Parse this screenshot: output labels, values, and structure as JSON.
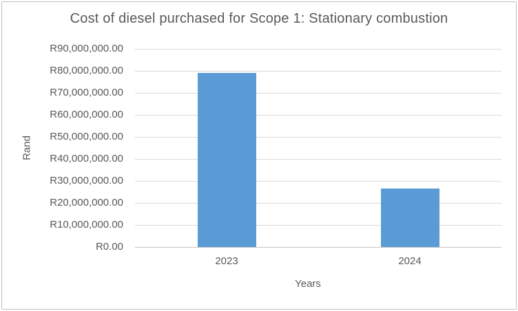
{
  "chart_data": {
    "type": "bar",
    "title": "Cost of diesel purchased for Scope 1: Stationary combustion",
    "xlabel": "Years",
    "ylabel": "Rand",
    "categories": [
      "2023",
      "2024"
    ],
    "values": [
      79000000,
      26500000
    ],
    "ylim": [
      0,
      90000000
    ],
    "y_ticks": [
      {
        "value": 0,
        "label": "R0.00"
      },
      {
        "value": 10000000,
        "label": "R10,000,000.00"
      },
      {
        "value": 20000000,
        "label": "R20,000,000.00"
      },
      {
        "value": 30000000,
        "label": "R30,000,000.00"
      },
      {
        "value": 40000000,
        "label": "R40,000,000.00"
      },
      {
        "value": 50000000,
        "label": "R50,000,000.00"
      },
      {
        "value": 60000000,
        "label": "R60,000,000.00"
      },
      {
        "value": 70000000,
        "label": "R70,000,000.00"
      },
      {
        "value": 80000000,
        "label": "R80,000,000.00"
      },
      {
        "value": 90000000,
        "label": "R90,000,000.00"
      }
    ],
    "grid": true,
    "legend": false,
    "bar_color": "#5B9BD5",
    "gridline_color": "#D9D9D9",
    "axis_line_color": "#C6C6C6",
    "text_color": "#595959"
  }
}
